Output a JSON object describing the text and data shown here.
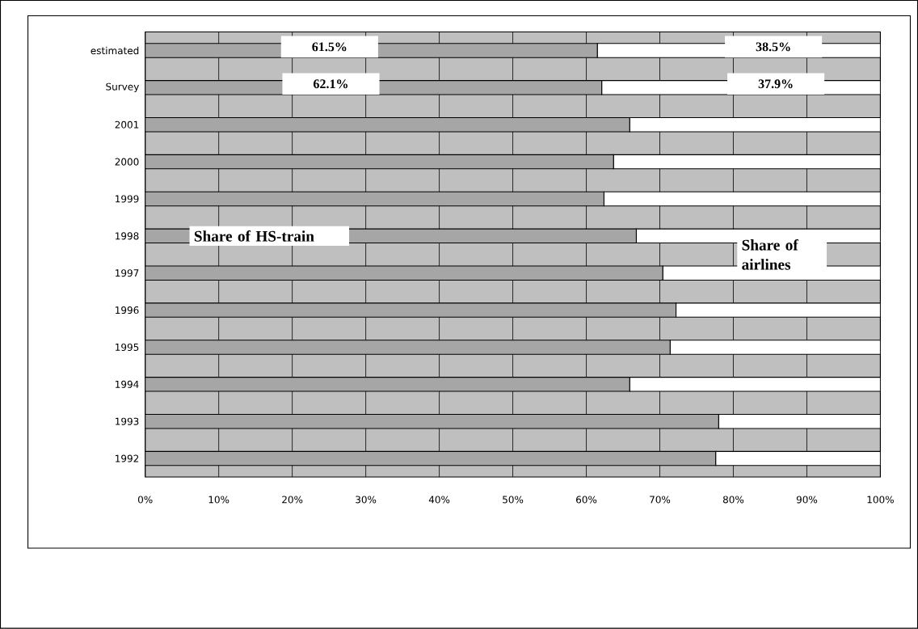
{
  "chart_data": {
    "type": "bar",
    "orientation": "horizontal",
    "stacked": true,
    "categories": [
      "estimated",
      "Survey",
      "2001",
      "2000",
      "1999",
      "1998",
      "1997",
      "1996",
      "1995",
      "1994",
      "1993",
      "1992"
    ],
    "series": [
      {
        "color": "#a6a6a6",
        "values": [
          61.5,
          62.1,
          65.9,
          63.7,
          62.4,
          66.8,
          70.4,
          72.2,
          71.4,
          65.9,
          78.0,
          77.6
        ],
        "value_labels": [
          "61.5%",
          "62.1%",
          null,
          null,
          null,
          null,
          null,
          null,
          null,
          null,
          null,
          null
        ]
      },
      {
        "color": "#ffffff",
        "values": [
          38.5,
          37.9,
          34.1,
          36.3,
          37.6,
          33.2,
          29.6,
          27.8,
          28.6,
          34.1,
          22.0,
          22.4
        ],
        "value_labels": [
          "38.5%",
          "37.9%",
          null,
          null,
          null,
          null,
          null,
          null,
          null,
          null,
          null,
          null
        ]
      }
    ],
    "xlim": [
      0,
      100
    ],
    "xticks": [
      {
        "value": 0,
        "label": "0%"
      },
      {
        "value": 10,
        "label": "10%"
      },
      {
        "value": 20,
        "label": "20%"
      },
      {
        "value": 30,
        "label": "30%"
      },
      {
        "value": 40,
        "label": "40%"
      },
      {
        "value": 50,
        "label": "50%"
      },
      {
        "value": 60,
        "label": "60%"
      },
      {
        "value": 70,
        "label": "70%"
      },
      {
        "value": 80,
        "label": "80%"
      },
      {
        "value": 90,
        "label": "90%"
      },
      {
        "value": 100,
        "label": "100%"
      }
    ],
    "grid": "x",
    "annotations": [
      "Share of HS-train",
      "Share of airlines"
    ]
  }
}
